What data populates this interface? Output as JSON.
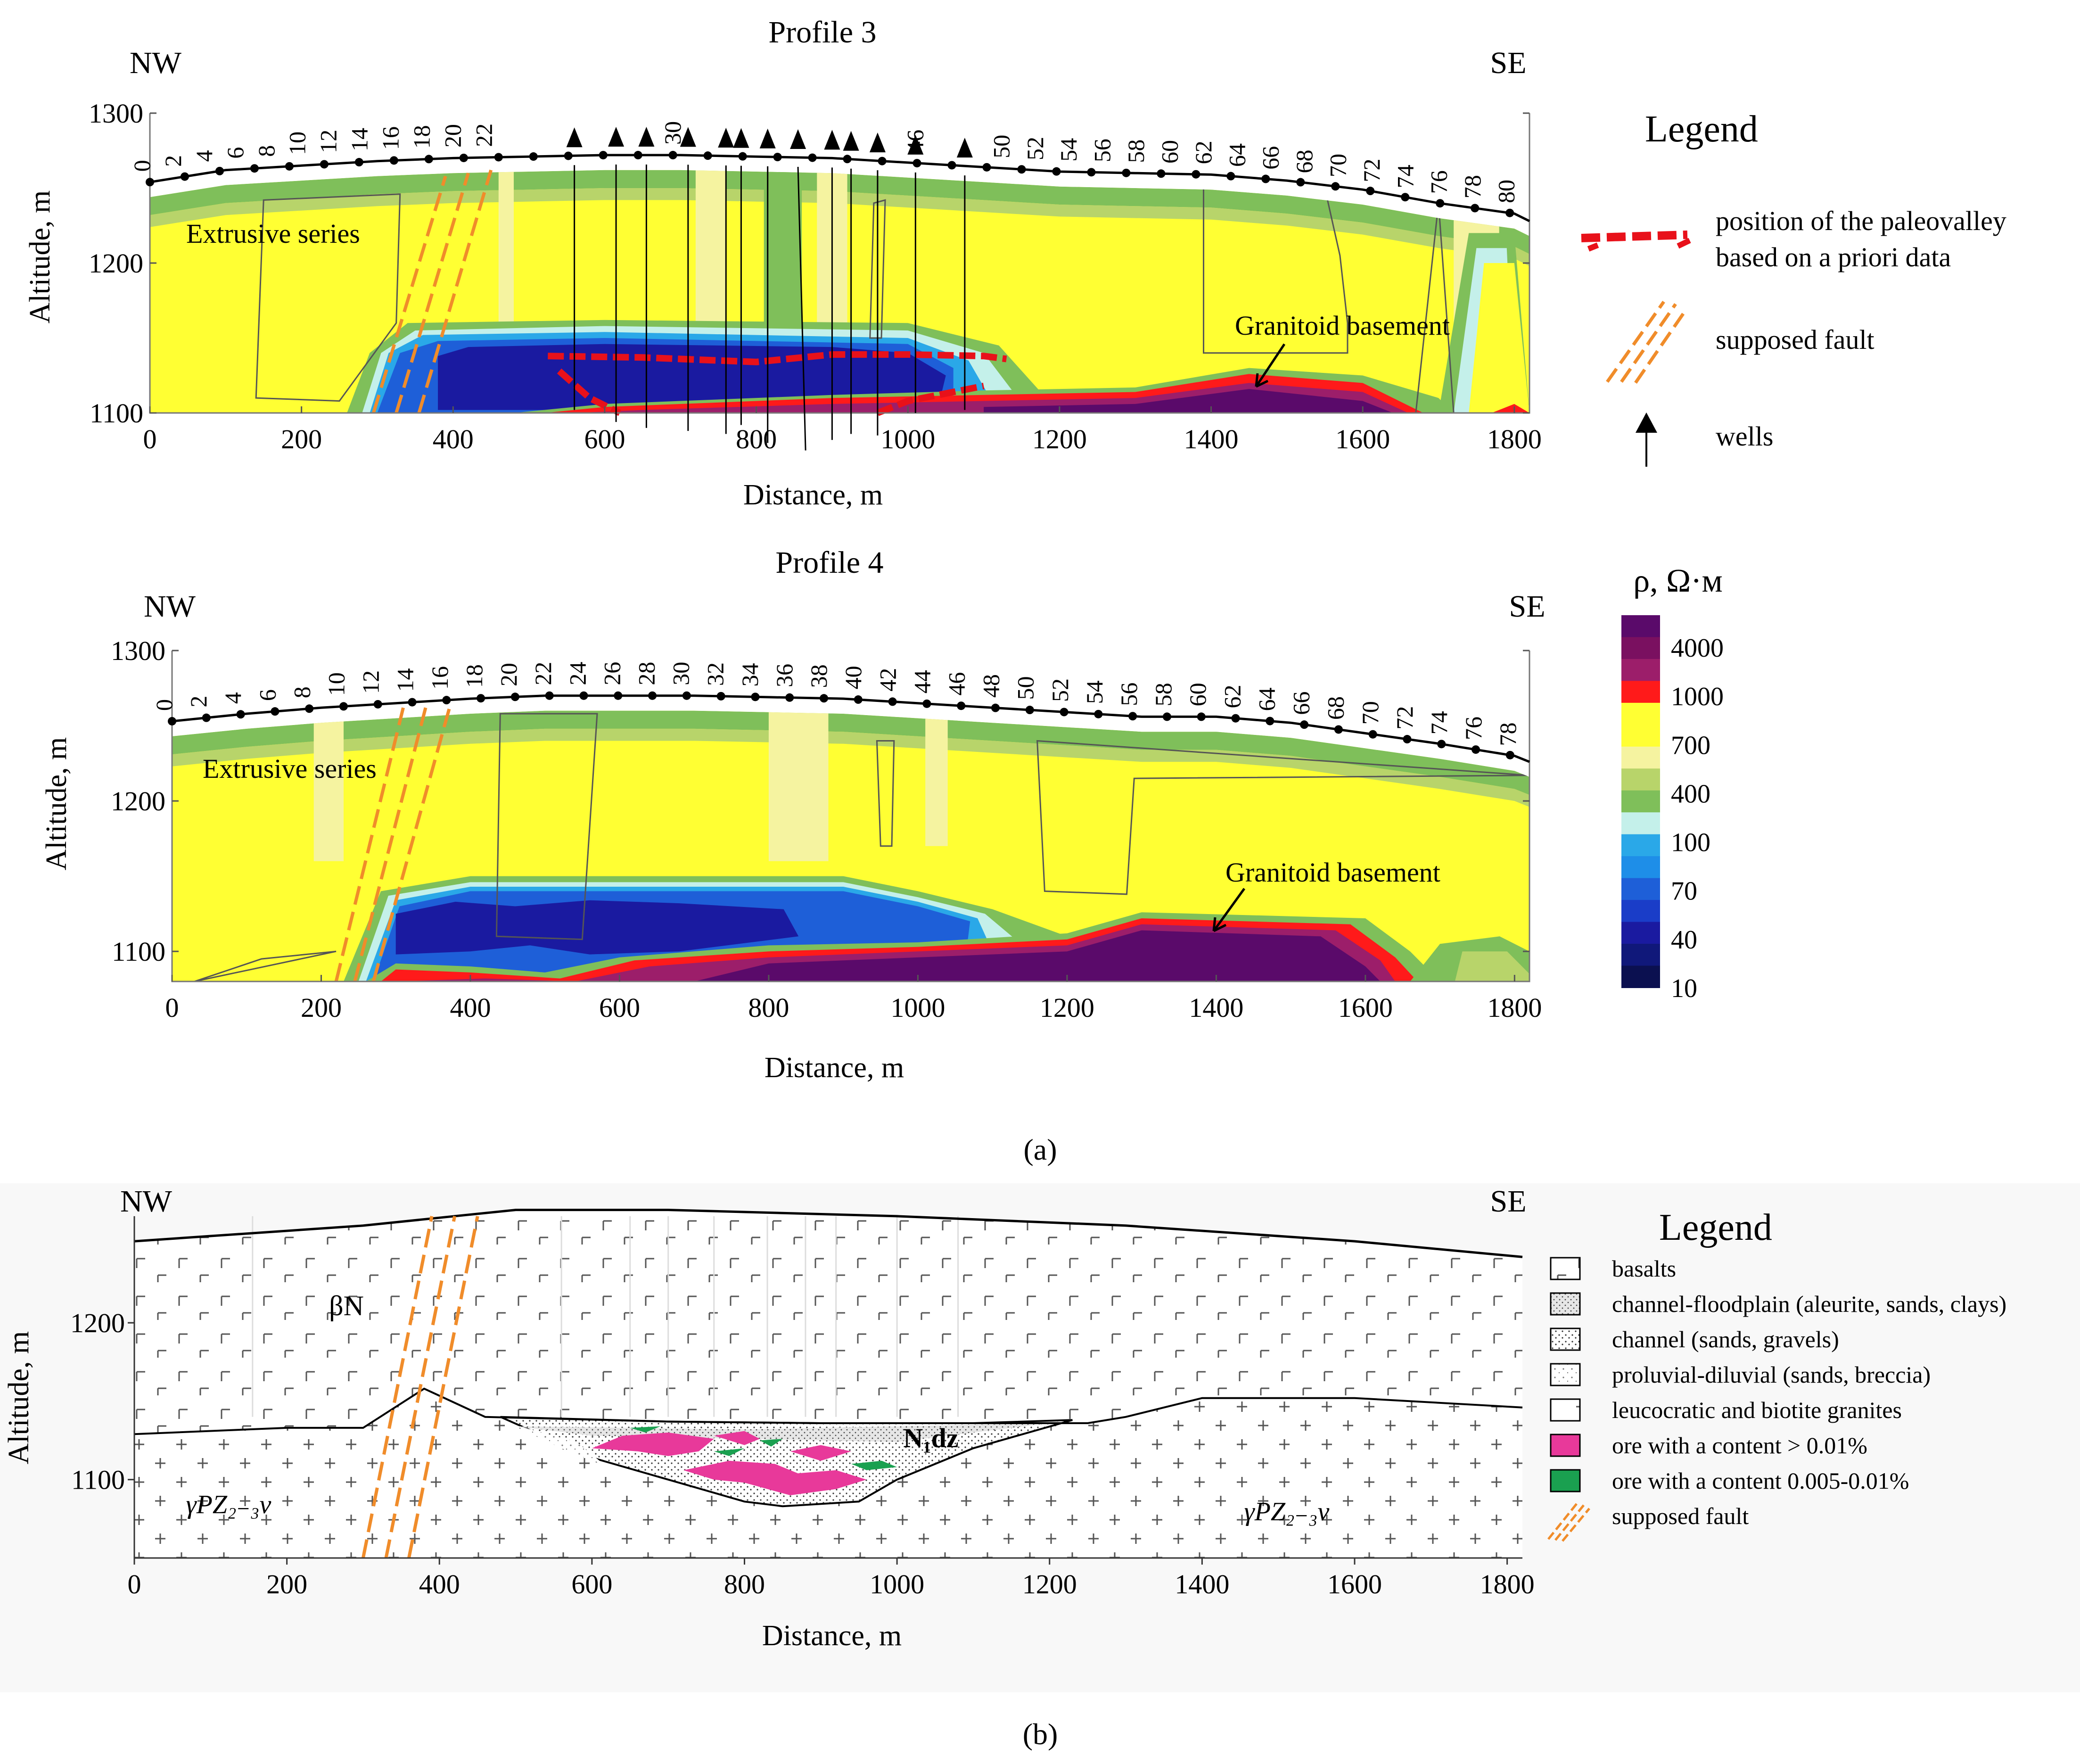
{
  "figure_labels": {
    "a": "(a)",
    "b": "(b)"
  },
  "colors": {
    "c10": "#0b1050",
    "c40": "#1a1aa0",
    "c70": "#1e5fd8",
    "c100": "#2aa8e8",
    "c400_light": "#c4f0ea",
    "c400": "#7fbf5a",
    "c700": "#b8d46a",
    "c1000_light": "#f5f3a0",
    "c1000": "#ffff33",
    "red": "#ff1a1a",
    "c4000": "#9c1e6a",
    "cmax": "#5a0a6a",
    "paleovalley": "#e8111a",
    "fault": "#f08c2a",
    "ore_high": "#e8399a",
    "ore_low": "#1aa050"
  },
  "legend_top": {
    "title": "Legend",
    "items": [
      {
        "icon": "paleovalley-dash-icon",
        "label_line1": "position of the paleovalley",
        "label_line2": "based on a priori data"
      },
      {
        "icon": "fault-icon",
        "label_line1": "supposed fault"
      },
      {
        "icon": "well-arrow-icon",
        "label_line1": "wells"
      }
    ]
  },
  "colorbar": {
    "title": "ρ, Ω·м",
    "ticks": [
      "4000",
      "1000",
      "700",
      "400",
      "100",
      "70",
      "40",
      "10"
    ]
  },
  "legend_bottom": {
    "title": "Legend",
    "items": [
      {
        "icon": "basalts-icon",
        "label": "basalts"
      },
      {
        "icon": "channel-floodplain-icon",
        "label": "channel-floodplain (aleurite, sands, clays)"
      },
      {
        "icon": "channel-icon",
        "label": "channel (sands, gravels)"
      },
      {
        "icon": "proluvial-icon",
        "label": "proluvial-diluvial (sands, breccia)"
      },
      {
        "icon": "granite-icon",
        "label": "leucocratic and biotite granites"
      },
      {
        "icon": "ore-high-icon",
        "label": "ore with a content > 0.01%"
      },
      {
        "icon": "ore-low-icon",
        "label": "ore with a content 0.005-0.01%"
      },
      {
        "icon": "fault-icon",
        "label": "supposed fault"
      }
    ]
  },
  "chart_data": [
    {
      "type": "heatmap",
      "title": "Profile 3",
      "left_label": "NW",
      "right_label": "SE",
      "xlabel": "Distance, m",
      "ylabel": "Altitude, m",
      "xlim": [
        0,
        1820
      ],
      "ylim": [
        1100,
        1300
      ],
      "xticks": [
        0,
        200,
        400,
        600,
        800,
        1000,
        1200,
        1400,
        1600,
        1800
      ],
      "yticks": [
        1100,
        1200,
        1300
      ],
      "stations": [
        "0",
        "2",
        "4",
        "6",
        "8",
        "10",
        "12",
        "14",
        "16",
        "18",
        "20",
        "22",
        "30",
        "46",
        "50",
        "52",
        "54",
        "56",
        "58",
        "60",
        "62",
        "64",
        "66",
        "68",
        "70",
        "72",
        "74",
        "76",
        "78",
        "80"
      ],
      "surface": [
        [
          0,
          1254
        ],
        [
          100,
          1262
        ],
        [
          200,
          1265
        ],
        [
          300,
          1268
        ],
        [
          400,
          1270
        ],
        [
          500,
          1271
        ],
        [
          600,
          1272
        ],
        [
          700,
          1272
        ],
        [
          800,
          1271
        ],
        [
          900,
          1270
        ],
        [
          1000,
          1267
        ],
        [
          1100,
          1264
        ],
        [
          1200,
          1261
        ],
        [
          1300,
          1260
        ],
        [
          1400,
          1259
        ],
        [
          1500,
          1255
        ],
        [
          1600,
          1249
        ],
        [
          1700,
          1240
        ],
        [
          1800,
          1233
        ],
        [
          1820,
          1228
        ]
      ],
      "wells_x": [
        560,
        615,
        655,
        710,
        760,
        780,
        815,
        855,
        900,
        925,
        960,
        1010,
        1075
      ],
      "annotations": [
        "Extrusive series",
        "Granitoid basement"
      ]
    },
    {
      "type": "heatmap",
      "title": "Profile 4",
      "left_label": "NW",
      "right_label": "SE",
      "xlabel": "Distance, m",
      "ylabel": "Altitude, m",
      "xlim": [
        0,
        1820
      ],
      "ylim": [
        1080,
        1300
      ],
      "xticks": [
        0,
        200,
        400,
        600,
        800,
        1000,
        1200,
        1400,
        1600,
        1800
      ],
      "yticks": [
        1100,
        1200,
        1300
      ],
      "stations": [
        "0",
        "2",
        "4",
        "6",
        "8",
        "10",
        "12",
        "14",
        "16",
        "18",
        "20",
        "22",
        "24",
        "26",
        "28",
        "30",
        "32",
        "34",
        "36",
        "38",
        "40",
        "42",
        "44",
        "46",
        "48",
        "50",
        "52",
        "54",
        "56",
        "58",
        "60",
        "62",
        "64",
        "66",
        "68",
        "70",
        "72",
        "74",
        "76",
        "78"
      ],
      "surface": [
        [
          0,
          1253
        ],
        [
          100,
          1258
        ],
        [
          200,
          1262
        ],
        [
          300,
          1265
        ],
        [
          400,
          1268
        ],
        [
          500,
          1270
        ],
        [
          600,
          1270
        ],
        [
          700,
          1270
        ],
        [
          800,
          1269
        ],
        [
          900,
          1268
        ],
        [
          1000,
          1265
        ],
        [
          1100,
          1262
        ],
        [
          1200,
          1259
        ],
        [
          1300,
          1256
        ],
        [
          1400,
          1256
        ],
        [
          1500,
          1252
        ],
        [
          1600,
          1245
        ],
        [
          1700,
          1238
        ],
        [
          1800,
          1230
        ],
        [
          1820,
          1226
        ]
      ],
      "annotations": [
        "Extrusive series",
        "Granitoid basement"
      ]
    },
    {
      "type": "cross-section",
      "left_label": "NW",
      "right_label": "SE",
      "xlabel": "Distance, m",
      "ylabel": "Altitude, m",
      "xlim": [
        0,
        1820
      ],
      "ylim": [
        1050,
        1280
      ],
      "xticks": [
        0,
        200,
        400,
        600,
        800,
        1000,
        1200,
        1400,
        1600,
        1800
      ],
      "yticks": [
        1100,
        1200
      ],
      "unit_labels": {
        "basalt": "βN",
        "channel": "N₁dz",
        "granite": "γPZ₂₋₃ν"
      }
    }
  ]
}
